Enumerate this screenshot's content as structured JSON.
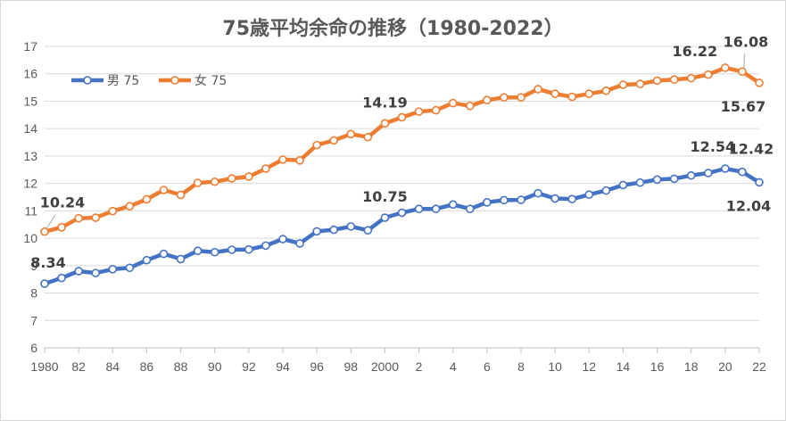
{
  "title": "75歳平均余命の推移（1980-2022）",
  "chart_data": {
    "type": "line",
    "title": "75歳平均余命の推移（1980-2022）",
    "xlabel": "",
    "ylabel": "",
    "ylim": [
      6,
      17
    ],
    "yticks": [
      6,
      7,
      8,
      9,
      10,
      11,
      12,
      13,
      14,
      15,
      16,
      17
    ],
    "grid": "horizontal",
    "legend": "top-left",
    "x": [
      1980,
      1981,
      1982,
      1983,
      1984,
      1985,
      1986,
      1987,
      1988,
      1989,
      1990,
      1991,
      1992,
      1993,
      1994,
      1995,
      1996,
      1997,
      1998,
      1999,
      2000,
      2001,
      2002,
      2003,
      2004,
      2005,
      2006,
      2007,
      2008,
      2009,
      2010,
      2011,
      2012,
      2013,
      2014,
      2015,
      2016,
      2017,
      2018,
      2019,
      2020,
      2021,
      2022
    ],
    "xticks": [
      {
        "x": 1980,
        "label": "1980"
      },
      {
        "x": 1982,
        "label": "82"
      },
      {
        "x": 1984,
        "label": "84"
      },
      {
        "x": 1986,
        "label": "86"
      },
      {
        "x": 1988,
        "label": "88"
      },
      {
        "x": 1990,
        "label": "90"
      },
      {
        "x": 1992,
        "label": "92"
      },
      {
        "x": 1994,
        "label": "94"
      },
      {
        "x": 1996,
        "label": "96"
      },
      {
        "x": 1998,
        "label": "98"
      },
      {
        "x": 2000,
        "label": "2000"
      },
      {
        "x": 2002,
        "label": "2"
      },
      {
        "x": 2004,
        "label": "4"
      },
      {
        "x": 2006,
        "label": "6"
      },
      {
        "x": 2008,
        "label": "8"
      },
      {
        "x": 2010,
        "label": "10"
      },
      {
        "x": 2012,
        "label": "12"
      },
      {
        "x": 2014,
        "label": "14"
      },
      {
        "x": 2016,
        "label": "16"
      },
      {
        "x": 2018,
        "label": "18"
      },
      {
        "x": 2020,
        "label": "20"
      },
      {
        "x": 2022,
        "label": "22"
      }
    ],
    "series": [
      {
        "name": "男 75",
        "color": "#4472c4",
        "values": [
          8.34,
          8.55,
          8.8,
          8.73,
          8.87,
          8.92,
          9.2,
          9.43,
          9.24,
          9.54,
          9.49,
          9.58,
          9.59,
          9.73,
          9.97,
          9.81,
          10.25,
          10.31,
          10.43,
          10.29,
          10.75,
          10.93,
          11.07,
          11.07,
          11.23,
          11.07,
          11.31,
          11.39,
          11.4,
          11.64,
          11.45,
          11.43,
          11.59,
          11.74,
          11.94,
          12.03,
          12.14,
          12.17,
          12.29,
          12.38,
          12.54,
          12.42,
          12.04
        ]
      },
      {
        "name": "女 75",
        "color": "#ed7d31",
        "values": [
          10.24,
          10.4,
          10.73,
          10.75,
          10.99,
          11.17,
          11.42,
          11.76,
          11.58,
          12.02,
          12.06,
          12.18,
          12.25,
          12.54,
          12.87,
          12.84,
          13.4,
          13.57,
          13.8,
          13.69,
          14.19,
          14.41,
          14.62,
          14.67,
          14.93,
          14.83,
          15.04,
          15.14,
          15.14,
          15.44,
          15.27,
          15.16,
          15.27,
          15.38,
          15.6,
          15.63,
          15.75,
          15.79,
          15.84,
          15.97,
          16.22,
          16.08,
          15.67
        ]
      }
    ],
    "annotations": [
      {
        "series": 0,
        "x": 1980,
        "label": "8.34"
      },
      {
        "series": 0,
        "x": 2000,
        "label": "10.75"
      },
      {
        "series": 0,
        "x": 2020,
        "label": "12.54"
      },
      {
        "series": 0,
        "x": 2021,
        "label": "12.42"
      },
      {
        "series": 0,
        "x": 2022,
        "label": "12.04"
      },
      {
        "series": 1,
        "x": 1980,
        "label": "10.24"
      },
      {
        "series": 1,
        "x": 2000,
        "label": "14.19"
      },
      {
        "series": 1,
        "x": 2020,
        "label": "16.22"
      },
      {
        "series": 1,
        "x": 2021,
        "label": "16.08"
      },
      {
        "series": 1,
        "x": 2022,
        "label": "15.67"
      }
    ]
  }
}
